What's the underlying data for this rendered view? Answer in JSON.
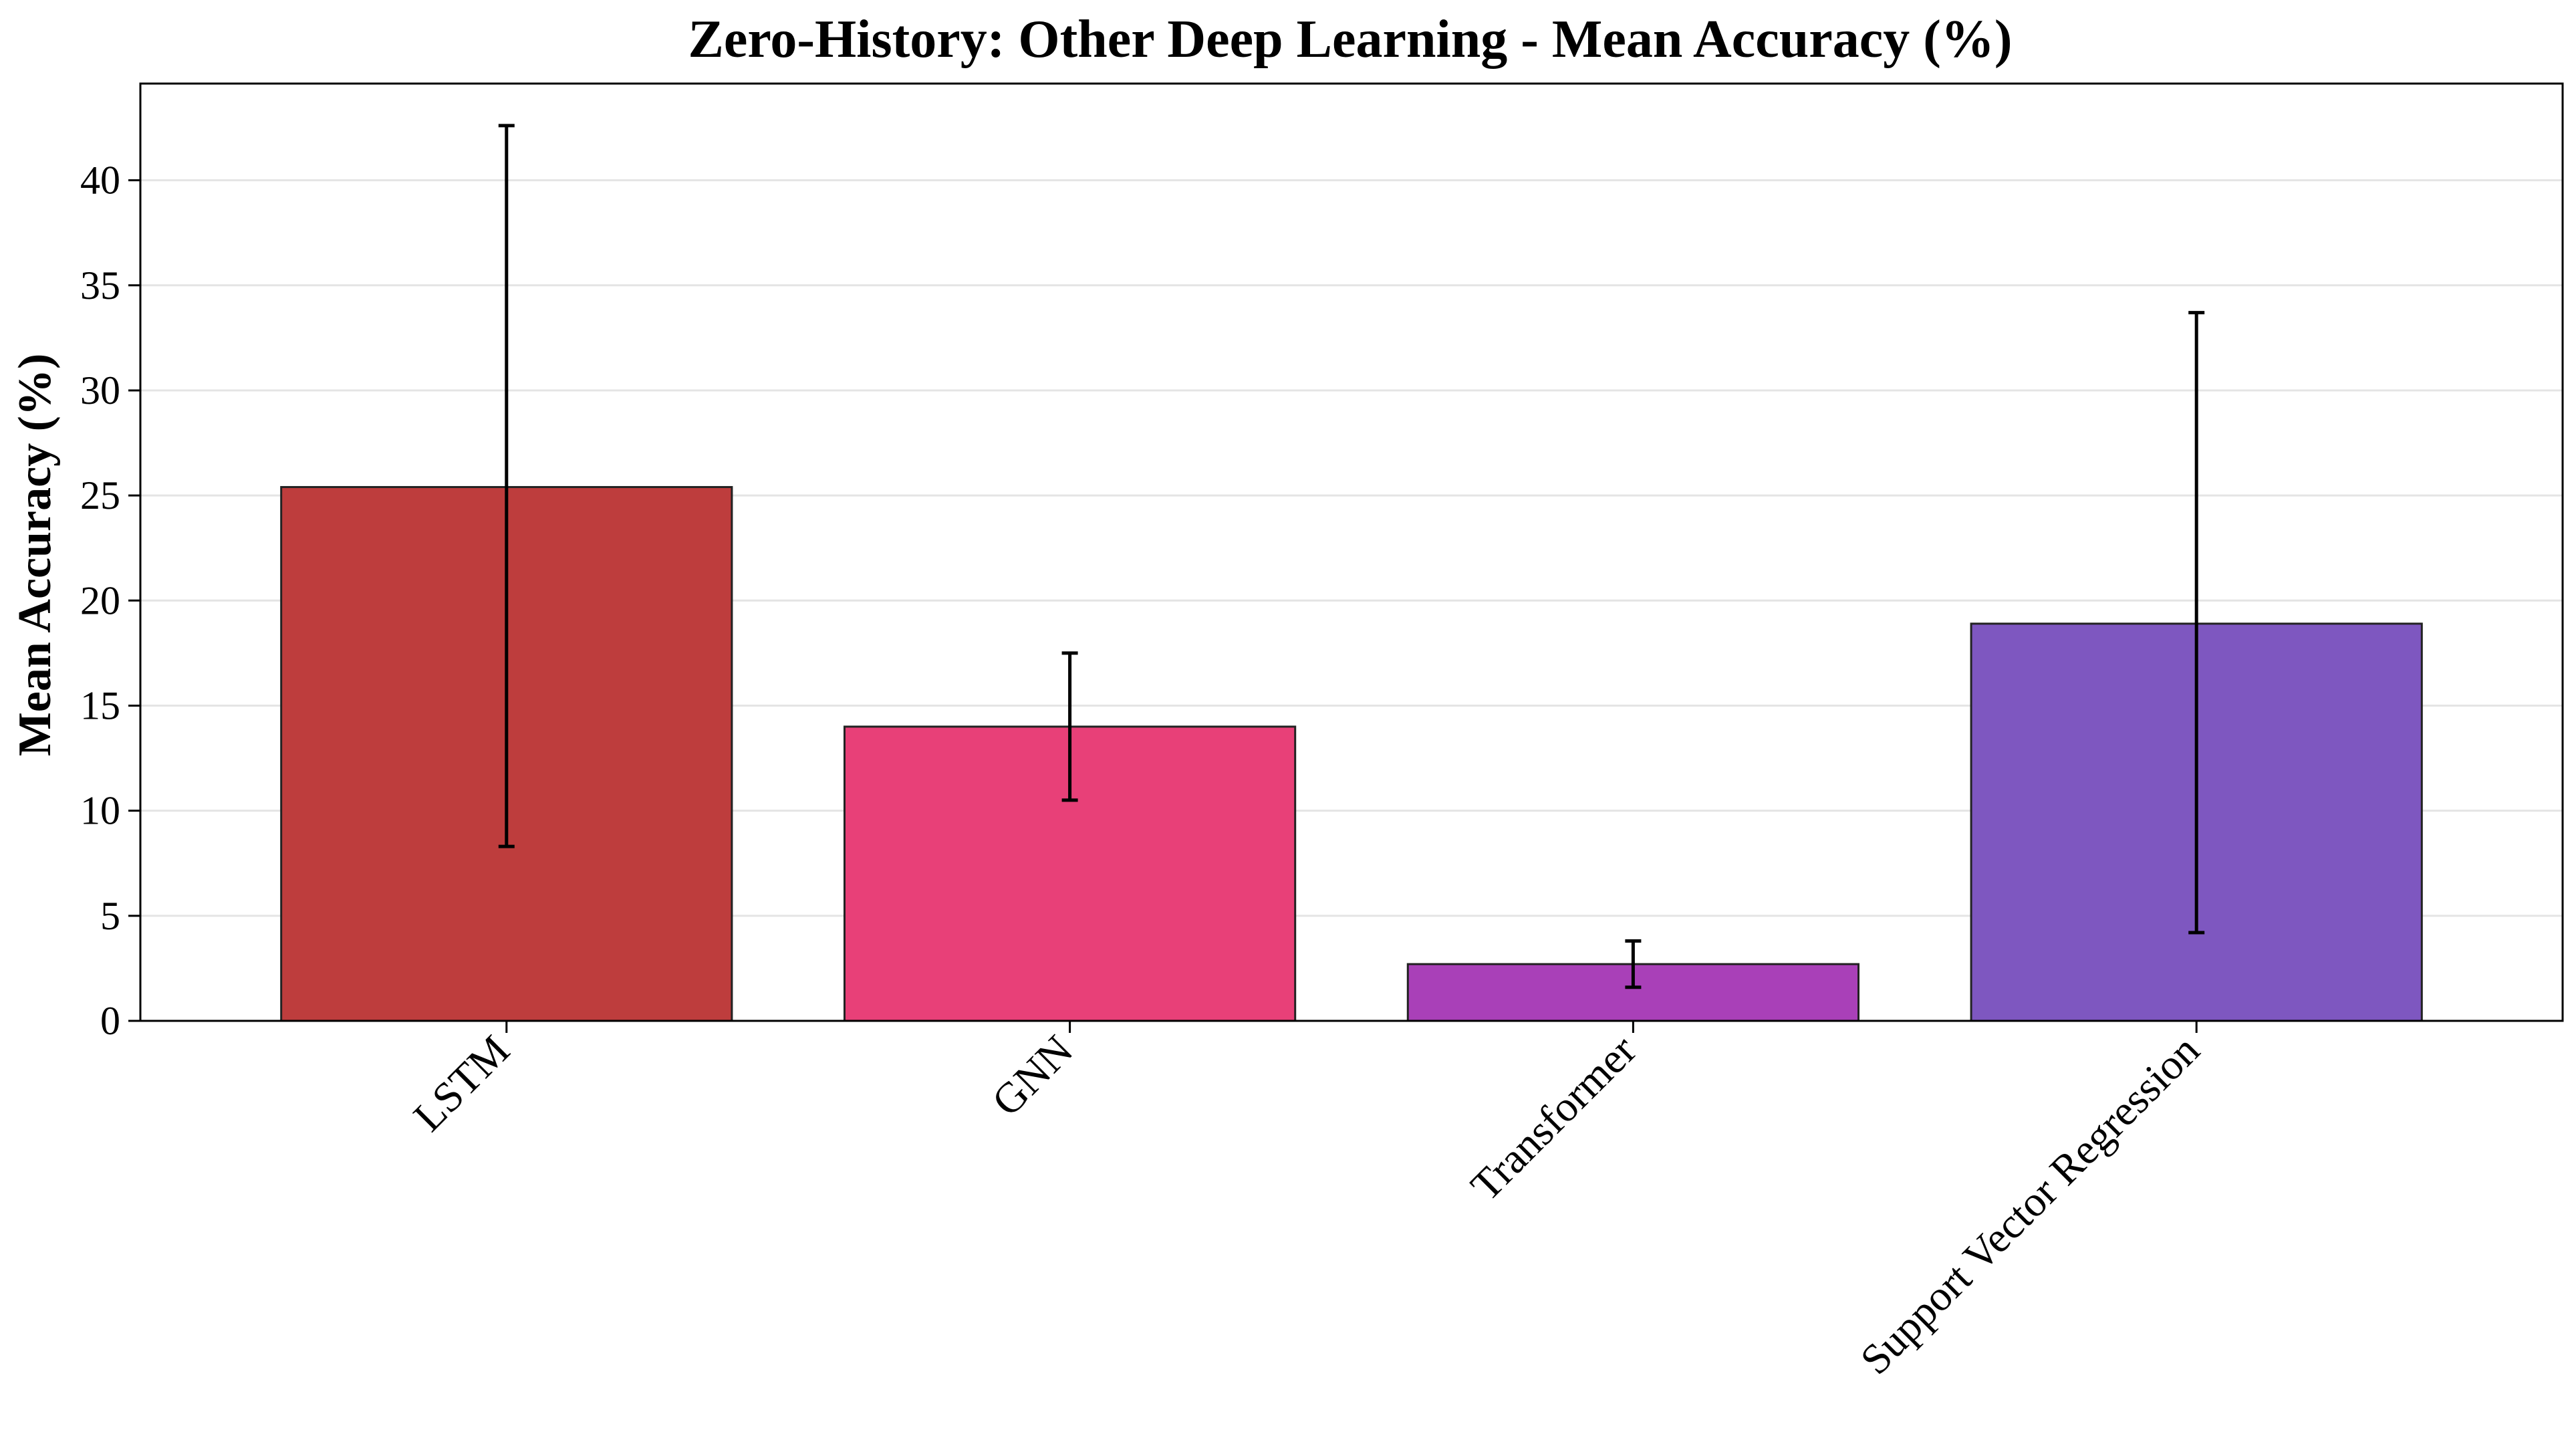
{
  "chart_data": {
    "type": "bar",
    "title": "Zero-History: Other Deep Learning - Mean Accuracy (%)",
    "xlabel": "",
    "ylabel": "Mean Accuracy (%)",
    "categories": [
      "LSTM",
      "GNN",
      "Transformer",
      "Support Vector Regression"
    ],
    "values": [
      25.4,
      14.0,
      2.7,
      18.9
    ],
    "error_low": [
      8.3,
      10.5,
      1.6,
      4.2
    ],
    "error_high": [
      42.6,
      17.5,
      3.8,
      33.7
    ],
    "colors": [
      "#be3d3d",
      "#e84078",
      "#a940b8",
      "#7e57c0"
    ],
    "ylim": [
      0,
      44.6
    ],
    "yticks": [
      0,
      5,
      10,
      15,
      20,
      25,
      30,
      35,
      40
    ],
    "grid": "y",
    "legend": "none"
  }
}
